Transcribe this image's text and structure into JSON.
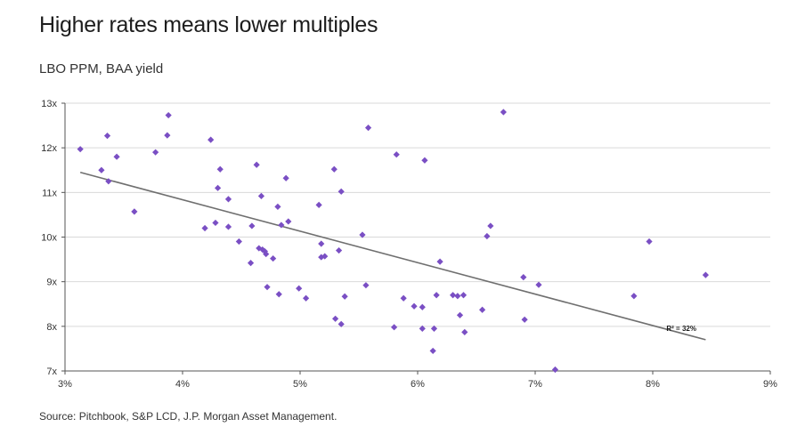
{
  "title": "Higher rates means lower multiples",
  "subtitle": "LBO PPM, BAA yield",
  "source": "Source: Pitchbook, S&P LCD, J.P. Morgan Asset Management.",
  "colors": {
    "points": "#7a4fc4",
    "trendline": "#6f6f6f",
    "gridline": "#d9d9d9",
    "axis": "#555555"
  },
  "chart_data": {
    "type": "scatter",
    "title": "Higher rates means lower multiples",
    "subtitle": "LBO PPM, BAA yield",
    "xlim": [
      3,
      9
    ],
    "ylim": [
      7,
      13
    ],
    "x_ticks": [
      3,
      4,
      5,
      6,
      7,
      8,
      9
    ],
    "y_ticks": [
      7,
      8,
      9,
      10,
      11,
      12,
      13
    ],
    "x_tick_labels": [
      "3%",
      "4%",
      "5%",
      "6%",
      "7%",
      "8%",
      "9%"
    ],
    "y_tick_labels": [
      "7x",
      "8x",
      "9x",
      "10x",
      "11x",
      "12x",
      "13x"
    ],
    "grid": "horizontal",
    "trendline": {
      "x": [
        3.13,
        8.45
      ],
      "y": [
        11.45,
        7.7
      ]
    },
    "annotation": "R² = 32%",
    "points": [
      {
        "x": 3.13,
        "y": 11.97
      },
      {
        "x": 3.31,
        "y": 11.5
      },
      {
        "x": 3.36,
        "y": 12.27
      },
      {
        "x": 3.37,
        "y": 11.25
      },
      {
        "x": 3.44,
        "y": 11.8
      },
      {
        "x": 3.59,
        "y": 10.57
      },
      {
        "x": 3.77,
        "y": 11.9
      },
      {
        "x": 3.87,
        "y": 12.28
      },
      {
        "x": 3.88,
        "y": 12.73
      },
      {
        "x": 4.19,
        "y": 10.2
      },
      {
        "x": 4.24,
        "y": 12.18
      },
      {
        "x": 4.28,
        "y": 10.32
      },
      {
        "x": 4.3,
        "y": 11.1
      },
      {
        "x": 4.32,
        "y": 11.52
      },
      {
        "x": 4.39,
        "y": 10.23
      },
      {
        "x": 4.39,
        "y": 10.85
      },
      {
        "x": 4.48,
        "y": 9.9
      },
      {
        "x": 4.59,
        "y": 10.25
      },
      {
        "x": 4.58,
        "y": 9.42
      },
      {
        "x": 4.63,
        "y": 11.62
      },
      {
        "x": 4.65,
        "y": 9.75
      },
      {
        "x": 4.67,
        "y": 10.92
      },
      {
        "x": 4.68,
        "y": 9.72
      },
      {
        "x": 4.7,
        "y": 9.68
      },
      {
        "x": 4.71,
        "y": 9.62
      },
      {
        "x": 4.72,
        "y": 8.88
      },
      {
        "x": 4.77,
        "y": 9.52
      },
      {
        "x": 4.81,
        "y": 10.68
      },
      {
        "x": 4.82,
        "y": 8.72
      },
      {
        "x": 4.84,
        "y": 10.27
      },
      {
        "x": 4.88,
        "y": 11.32
      },
      {
        "x": 4.9,
        "y": 10.35
      },
      {
        "x": 4.99,
        "y": 8.85
      },
      {
        "x": 5.05,
        "y": 8.63
      },
      {
        "x": 5.16,
        "y": 10.72
      },
      {
        "x": 5.18,
        "y": 9.85
      },
      {
        "x": 5.18,
        "y": 9.55
      },
      {
        "x": 5.21,
        "y": 9.57
      },
      {
        "x": 5.29,
        "y": 11.52
      },
      {
        "x": 5.3,
        "y": 8.17
      },
      {
        "x": 5.33,
        "y": 9.7
      },
      {
        "x": 5.35,
        "y": 11.02
      },
      {
        "x": 5.35,
        "y": 8.05
      },
      {
        "x": 5.38,
        "y": 8.67
      },
      {
        "x": 5.53,
        "y": 10.05
      },
      {
        "x": 5.56,
        "y": 8.92
      },
      {
        "x": 5.58,
        "y": 12.45
      },
      {
        "x": 5.8,
        "y": 7.98
      },
      {
        "x": 5.82,
        "y": 11.85
      },
      {
        "x": 5.88,
        "y": 8.63
      },
      {
        "x": 5.97,
        "y": 8.45
      },
      {
        "x": 6.04,
        "y": 8.43
      },
      {
        "x": 6.04,
        "y": 7.95
      },
      {
        "x": 6.06,
        "y": 11.72
      },
      {
        "x": 6.13,
        "y": 7.45
      },
      {
        "x": 6.14,
        "y": 7.95
      },
      {
        "x": 6.16,
        "y": 8.7
      },
      {
        "x": 6.19,
        "y": 9.45
      },
      {
        "x": 6.3,
        "y": 8.7
      },
      {
        "x": 6.34,
        "y": 8.68
      },
      {
        "x": 6.36,
        "y": 8.25
      },
      {
        "x": 6.39,
        "y": 8.7
      },
      {
        "x": 6.4,
        "y": 7.87
      },
      {
        "x": 6.55,
        "y": 8.37
      },
      {
        "x": 6.59,
        "y": 10.02
      },
      {
        "x": 6.62,
        "y": 10.25
      },
      {
        "x": 6.73,
        "y": 12.8
      },
      {
        "x": 6.9,
        "y": 9.1
      },
      {
        "x": 6.91,
        "y": 8.15
      },
      {
        "x": 7.03,
        "y": 8.93
      },
      {
        "x": 7.17,
        "y": 7.03
      },
      {
        "x": 7.84,
        "y": 8.68
      },
      {
        "x": 7.97,
        "y": 9.9
      },
      {
        "x": 8.45,
        "y": 9.15
      }
    ]
  }
}
